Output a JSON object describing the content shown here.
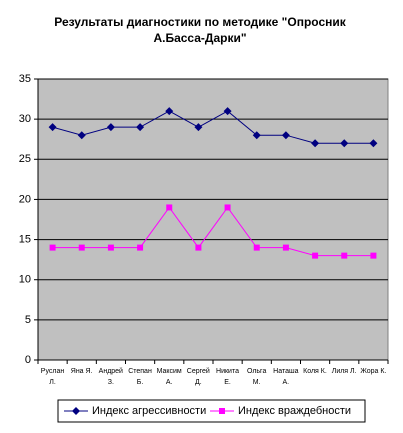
{
  "chart_data": {
    "type": "line",
    "title": "Результаты диагностики по методике \"Опросник А.Басса-Дарки\"",
    "categories": [
      "Руслан Л.",
      "Яна Я.",
      "Андрей З.",
      "Степан Б.",
      "Максим А.",
      "Сергей Д.",
      "Никита Е.",
      "Ольга М.",
      "Наташа А.",
      "Коля К.",
      "Лиля Л.",
      "Жора К."
    ],
    "series": [
      {
        "name": "Индекс агрессивности",
        "color": "#000080",
        "marker": "diamond",
        "values": [
          29,
          28,
          29,
          29,
          31,
          29,
          31,
          28,
          28,
          27,
          27,
          27
        ]
      },
      {
        "name": "Индекс враждебности",
        "color": "#ff00ff",
        "marker": "square",
        "values": [
          14,
          14,
          14,
          14,
          19,
          14,
          19,
          14,
          14,
          13,
          13,
          13
        ]
      }
    ],
    "ylim": [
      0,
      35
    ],
    "yticks": [
      0,
      5,
      10,
      15,
      20,
      25,
      30,
      35
    ],
    "grid": true,
    "plot_background": "#c0c0c0",
    "legend": "bottom"
  }
}
